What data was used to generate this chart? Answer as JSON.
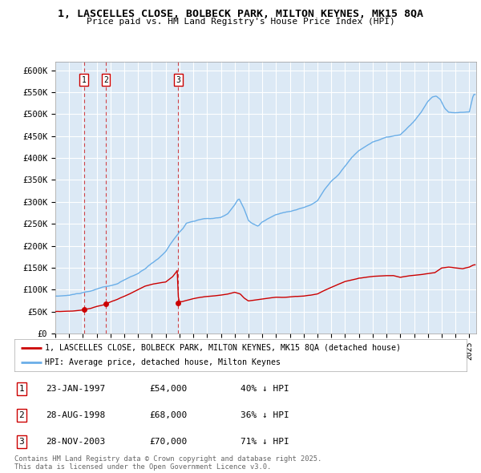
{
  "title_line1": "1, LASCELLES CLOSE, BOLBECK PARK, MILTON KEYNES, MK15 8QA",
  "title_line2": "Price paid vs. HM Land Registry's House Price Index (HPI)",
  "background_color": "#dce9f5",
  "fig_bg_color": "#ffffff",
  "grid_color": "#ffffff",
  "hpi_color": "#6aaee8",
  "price_color": "#cc0000",
  "ylim": [
    0,
    620000
  ],
  "yticks": [
    0,
    50000,
    100000,
    150000,
    200000,
    250000,
    300000,
    350000,
    400000,
    450000,
    500000,
    550000,
    600000
  ],
  "ytick_labels": [
    "£0",
    "£50K",
    "£100K",
    "£150K",
    "£200K",
    "£250K",
    "£300K",
    "£350K",
    "£400K",
    "£450K",
    "£500K",
    "£550K",
    "£600K"
  ],
  "xlim_start": 1995.0,
  "xlim_end": 2025.5,
  "xtick_years": [
    1995,
    1996,
    1997,
    1998,
    1999,
    2000,
    2001,
    2002,
    2003,
    2004,
    2005,
    2006,
    2007,
    2008,
    2009,
    2010,
    2011,
    2012,
    2013,
    2014,
    2015,
    2016,
    2017,
    2018,
    2019,
    2020,
    2021,
    2022,
    2023,
    2024,
    2025
  ],
  "purchase_dates": [
    1997.065,
    1998.655,
    2003.91
  ],
  "purchase_prices": [
    54000,
    68000,
    70000
  ],
  "purchase_labels": [
    "1",
    "2",
    "3"
  ],
  "legend_line1": "1, LASCELLES CLOSE, BOLBECK PARK, MILTON KEYNES, MK15 8QA (detached house)",
  "legend_line2": "HPI: Average price, detached house, Milton Keynes",
  "table_rows": [
    {
      "num": "1",
      "date": "23-JAN-1997",
      "price": "£54,000",
      "hpi": "40% ↓ HPI"
    },
    {
      "num": "2",
      "date": "28-AUG-1998",
      "price": "£68,000",
      "hpi": "36% ↓ HPI"
    },
    {
      "num": "3",
      "date": "28-NOV-2003",
      "price": "£70,000",
      "hpi": "71% ↓ HPI"
    }
  ],
  "footnote": "Contains HM Land Registry data © Crown copyright and database right 2025.\nThis data is licensed under the Open Government Licence v3.0."
}
